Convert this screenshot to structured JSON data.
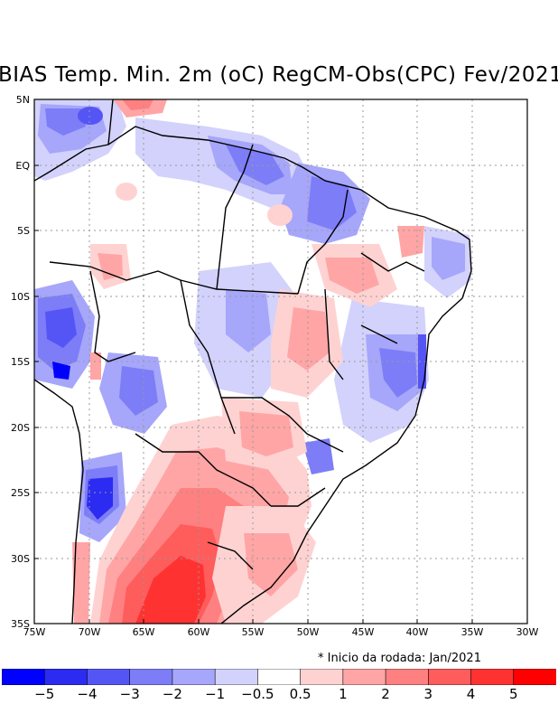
{
  "title": "BIAS Temp. Min. 2m (oC) RegCM-Obs(CPC) Fev/2021",
  "note": "* Inicio da rodada: Jan/2021",
  "lat_ticks": [
    "5N",
    "EQ",
    "5S",
    "10S",
    "15S",
    "20S",
    "25S",
    "30S",
    "35S"
  ],
  "lon_ticks": [
    "75W",
    "70W",
    "65W",
    "60W",
    "55W",
    "50W",
    "45W",
    "40W",
    "35W",
    "30W"
  ],
  "colorbar": {
    "colors": [
      "#0000ff",
      "#2b2bf2",
      "#5555f6",
      "#7d7df8",
      "#a6a6fa",
      "#d2d2fc",
      "#ffffff",
      "#ffd2d2",
      "#ffa5a5",
      "#ff8080",
      "#ff5c5c",
      "#ff3232",
      "#ff0000"
    ],
    "labels": [
      "−5",
      "−4",
      "−3",
      "−2",
      "−1",
      "−0.5",
      "0.5",
      "1",
      "2",
      "3",
      "4",
      "5"
    ]
  },
  "map": {
    "region": "Brazil / South America",
    "lon_range": [
      -75,
      -30
    ],
    "lat_range": [
      -35,
      5
    ],
    "variable": "BIAS Temp. Min. 2m (oC)"
  }
}
